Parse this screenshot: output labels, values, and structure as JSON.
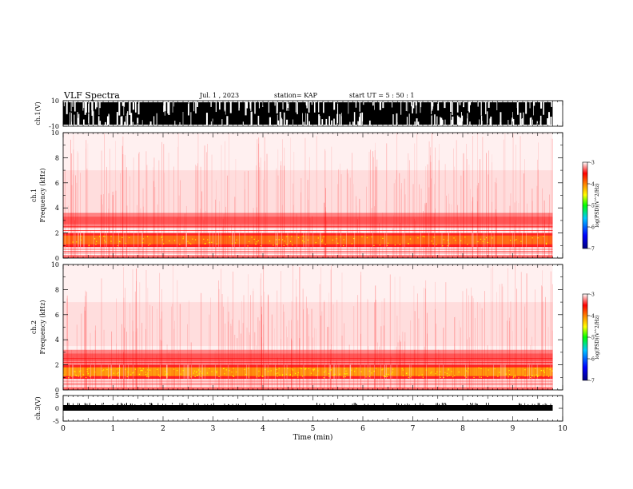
{
  "header": {
    "title": "VLF Spectra",
    "date": "Jul. 1 , 2023",
    "station": "station= KAP",
    "start_time": "start UT = 5 : 50 : 1"
  },
  "chart_data": {
    "type": "heatmap",
    "title": "VLF Spectra",
    "xlabel": "Time (min)",
    "xlim": [
      0,
      10
    ],
    "xticks": [
      "0",
      "1",
      "2",
      "3",
      "4",
      "5",
      "6",
      "7",
      "8",
      "9",
      "10"
    ],
    "data_end_min": 9.8,
    "panels": [
      {
        "name": "ch1-waveform",
        "type": "waveform",
        "ylabel": "ch.1(V)",
        "ylim": [
          -10,
          10
        ],
        "yticks": [
          "10",
          "-10"
        ]
      },
      {
        "name": "ch1-spectrogram",
        "type": "heatmap",
        "ylabel_top": "ch.1",
        "ylabel": "Frequency (kHz)",
        "ylim": [
          0,
          10
        ],
        "yticks": [
          "0",
          "2",
          "4",
          "6",
          "8",
          "10"
        ],
        "bands_khz": [
          0.5,
          1.5,
          3.0,
          5.5
        ],
        "colorbar": {
          "label": "log(PSD)(V^2/Hz)",
          "range": [
            -7,
            -3
          ],
          "ticks": [
            "-3",
            "-4",
            "-5",
            "-6",
            "-7"
          ]
        }
      },
      {
        "name": "ch2-spectrogram",
        "type": "heatmap",
        "ylabel_top": "ch.2",
        "ylabel": "Frequency (kHz)",
        "ylim": [
          0,
          10
        ],
        "yticks": [
          "0",
          "2",
          "4",
          "6",
          "8",
          "10"
        ],
        "bands_khz": [
          0.5,
          1.5,
          2.6,
          5.0
        ],
        "colorbar": {
          "label": "log(PSD)(V^2/Hz)",
          "range": [
            -7,
            -3
          ],
          "ticks": [
            "-3",
            "-4",
            "-5",
            "-6",
            "-7"
          ]
        }
      },
      {
        "name": "ch3-waveform",
        "type": "waveform",
        "ylabel": "ch.3(V)",
        "ylim": [
          -5,
          5
        ],
        "yticks": [
          "5",
          "0",
          "-5"
        ]
      }
    ],
    "colors": {
      "low": "#ffffff",
      "mid": "#ff0000",
      "high": "#ffff00",
      "trace": "#000000"
    }
  }
}
